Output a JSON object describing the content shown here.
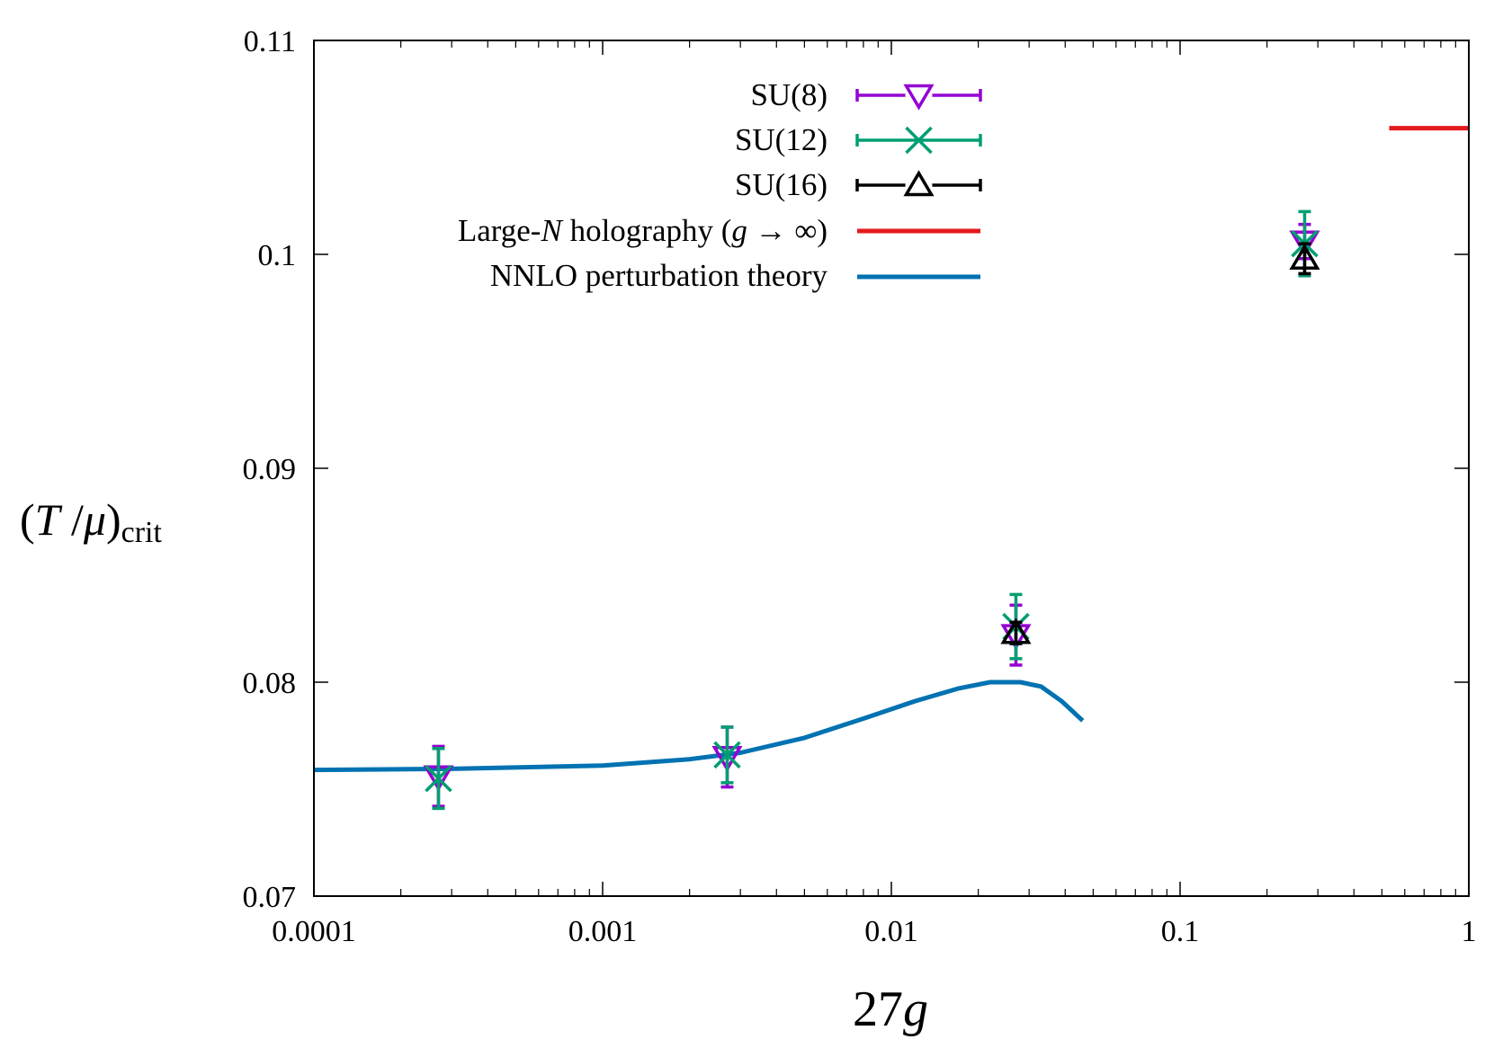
{
  "chart_data": {
    "type": "scatter",
    "x_scale": "log",
    "xlim": [
      0.0001,
      1
    ],
    "ylim": [
      0.07,
      0.11
    ],
    "x_ticks": [
      {
        "value": 0.0001,
        "label": "0.0001"
      },
      {
        "value": 0.001,
        "label": "0.001"
      },
      {
        "value": 0.01,
        "label": "0.01"
      },
      {
        "value": 0.1,
        "label": "0.1"
      },
      {
        "value": 1,
        "label": "1"
      }
    ],
    "y_ticks": [
      {
        "value": 0.07,
        "label": "0.07"
      },
      {
        "value": 0.08,
        "label": "0.08"
      },
      {
        "value": 0.09,
        "label": "0.09"
      },
      {
        "value": 0.1,
        "label": "0.1"
      },
      {
        "value": 0.11,
        "label": "0.11"
      }
    ],
    "xlabel": {
      "number": "27",
      "var": "g"
    },
    "ylabel": {
      "open": "(",
      "var1": "T",
      "slash": " /",
      "var2": "μ",
      "close": ")",
      "sub": "crit"
    },
    "legend_position": "top-center",
    "series": [
      {
        "name": "SU(8)",
        "color": "#9400d3",
        "marker": "triangle-down",
        "points": [
          {
            "x": 0.00027,
            "y": 0.0756,
            "err": 0.0014
          },
          {
            "x": 0.0027,
            "y": 0.0765,
            "err": 0.0014
          },
          {
            "x": 0.027,
            "y": 0.0822,
            "err": 0.0014
          },
          {
            "x": 0.27,
            "y": 0.1006,
            "err": 0.0008
          }
        ]
      },
      {
        "name": "SU(12)",
        "color": "#009e73",
        "marker": "cross",
        "points": [
          {
            "x": 0.00027,
            "y": 0.0755,
            "err": 0.0014
          },
          {
            "x": 0.0027,
            "y": 0.0766,
            "err": 0.0013
          },
          {
            "x": 0.027,
            "y": 0.0826,
            "err": 0.0015
          },
          {
            "x": 0.27,
            "y": 0.1005,
            "err": 0.0015
          }
        ]
      },
      {
        "name": "SU(16)",
        "color": "#000000",
        "marker": "triangle-up",
        "points": [
          {
            "x": 0.027,
            "y": 0.0823,
            "err": 0.0005
          },
          {
            "x": 0.27,
            "y": 0.0998,
            "err": 0.0007
          }
        ]
      }
    ],
    "holography": {
      "name_parts": {
        "a": "Large-",
        "b": "N",
        "c": " holography (",
        "d": "g",
        "e": " → ∞)"
      },
      "color": "#e41a1c",
      "y": 0.1059,
      "x_from": 0.53,
      "x_to": 1
    },
    "perturbation": {
      "name": "NNLO perturbation theory",
      "color": "#0072b2",
      "curve": [
        [
          0.0001,
          0.0759
        ],
        [
          0.0003,
          0.07595
        ],
        [
          0.001,
          0.0761
        ],
        [
          0.002,
          0.0764
        ],
        [
          0.003,
          0.0767
        ],
        [
          0.005,
          0.0774
        ],
        [
          0.008,
          0.0783
        ],
        [
          0.012,
          0.0791
        ],
        [
          0.017,
          0.0797
        ],
        [
          0.022,
          0.08
        ],
        [
          0.028,
          0.08
        ],
        [
          0.033,
          0.0798
        ],
        [
          0.039,
          0.0791
        ],
        [
          0.046,
          0.0782
        ]
      ]
    }
  }
}
